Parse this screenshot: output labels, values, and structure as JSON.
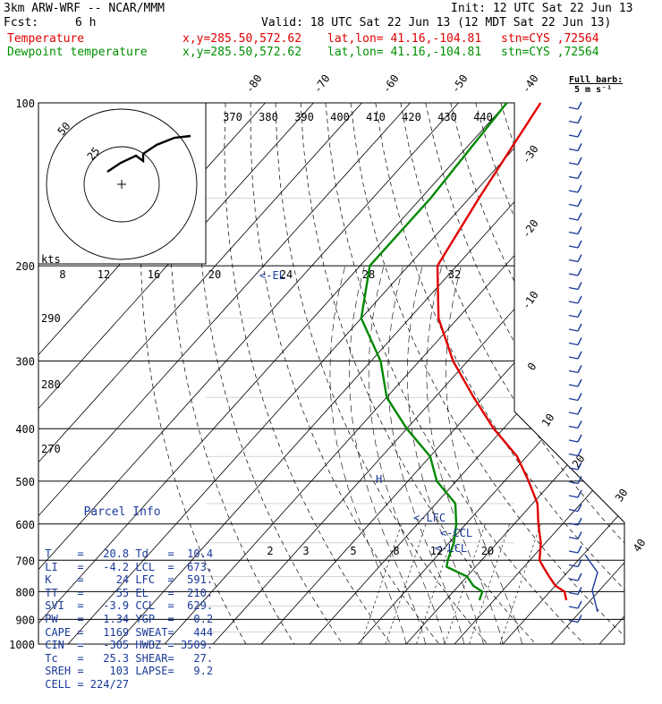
{
  "header": {
    "model": "3km ARW-WRF -- NCAR/MMM",
    "init": "Init: 12 UTC Sat 22 Jun 13",
    "fcst_label": "Fcst:",
    "fcst_value": "6 h",
    "valid": "Valid: 18 UTC Sat 22 Jun 13 (12 MDT Sat 22 Jun 13)",
    "temp_line": {
      "name": "Temperature",
      "xy": "x,y=285.50,572.62",
      "latlon": "lat,lon= 41.16,-104.81",
      "stn": "stn=CYS ,72564"
    },
    "dew_line": {
      "name": "Dewpoint temperature",
      "xy": "x,y=285.50,572.62",
      "latlon": "lat,lon= 41.16,-104.81",
      "stn": "stn=CYS ,72564"
    },
    "barb_legend": {
      "title": "Full barb:",
      "value": "5 m s⁻¹"
    }
  },
  "colors": {
    "temperature": "#e00000",
    "dewpoint": "#008800",
    "parcel": "#1a3a9a",
    "grid": "#000000",
    "barbs": "#1a3a9a"
  },
  "chart_data": {
    "type": "line",
    "subtype": "skew-T log-P",
    "pressure_levels": [
      "100",
      "200",
      "300",
      "400",
      "500",
      "600",
      "700",
      "800",
      "900",
      "1000"
    ],
    "isotherm_labels": [
      "-80",
      "-70",
      "-60",
      "-50",
      "-40",
      "-30",
      "-20",
      "-10",
      "0",
      "10",
      "20",
      "30",
      "40"
    ],
    "theta_labels": [
      "370",
      "380",
      "390",
      "400",
      "410",
      "420",
      "430",
      "440"
    ],
    "mixing_ratio_labels": [
      "2",
      "3",
      "5",
      "8",
      "12",
      "20"
    ],
    "markers": {
      "el": "<-EL",
      "lfc": "<-LFC",
      "ccl": "<-CCL",
      "lcl": "<-LCL",
      "parcel_mark": "H"
    },
    "lcl_label": "<-LCL",
    "series": [
      {
        "name": "Temperature",
        "p": [
          100,
          150,
          200,
          250,
          300,
          350,
          400,
          450,
          500,
          550,
          600,
          650,
          700,
          720,
          750,
          780,
          800,
          830
        ],
        "t": [
          -63,
          -58,
          -54,
          -44,
          -33,
          -22,
          -12,
          -2,
          5,
          11,
          15,
          19,
          22,
          24,
          27,
          30,
          33,
          35
        ]
      },
      {
        "name": "Dewpoint temperature",
        "p": [
          100,
          150,
          200,
          250,
          300,
          350,
          400,
          450,
          500,
          550,
          600,
          650,
          700,
          720,
          750,
          780,
          800,
          830
        ],
        "t": [
          -70,
          -68,
          -68,
          -60,
          -48,
          -40,
          -30,
          -20,
          -14,
          -6,
          -2,
          1,
          3,
          4,
          10,
          13,
          16,
          17
        ]
      }
    ],
    "hodograph": {
      "rings": [
        "25",
        "50"
      ],
      "unit": "kts",
      "speed_labels": [
        "8",
        "12",
        "16",
        "20",
        "24",
        "28",
        "32"
      ],
      "thetae_labels": [
        "290",
        "280",
        "270"
      ]
    },
    "barb_ticks": [
      "30",
      "40"
    ]
  },
  "parcel_info": {
    "title": "Parcel Info",
    "rows": [
      {
        "k1": "T",
        "v1": "20.8",
        "k2": "Td",
        "v2": "10.4"
      },
      {
        "k1": "LI",
        "v1": "-4.2",
        "k2": "LCL",
        "v2": "673."
      },
      {
        "k1": "K",
        "v1": "24",
        "k2": "LFC",
        "v2": "591."
      },
      {
        "k1": "TT",
        "v1": "55",
        "k2": "EL",
        "v2": "210."
      },
      {
        "k1": "SVI",
        "v1": "-3.9",
        "k2": "CCL",
        "v2": "629."
      },
      {
        "k1": "PW",
        "v1": "1.34",
        "k2": "YGP",
        "v2": "0.2"
      },
      {
        "k1": "CAPE",
        "v1": "1169",
        "k2": "SWEAT",
        "v2": "444"
      },
      {
        "k1": "CIN",
        "v1": "-305",
        "k2": "HWBZ",
        "v2": "3509."
      },
      {
        "k1": "Tc",
        "v1": "25.3",
        "k2": "SHEAR",
        "v2": "27."
      },
      {
        "k1": "SREH",
        "v1": "103",
        "k2": "LAPSE",
        "v2": "9.2"
      },
      {
        "k1": "CELL",
        "v1": "224/27",
        "k2": "",
        "v2": ""
      }
    ]
  }
}
